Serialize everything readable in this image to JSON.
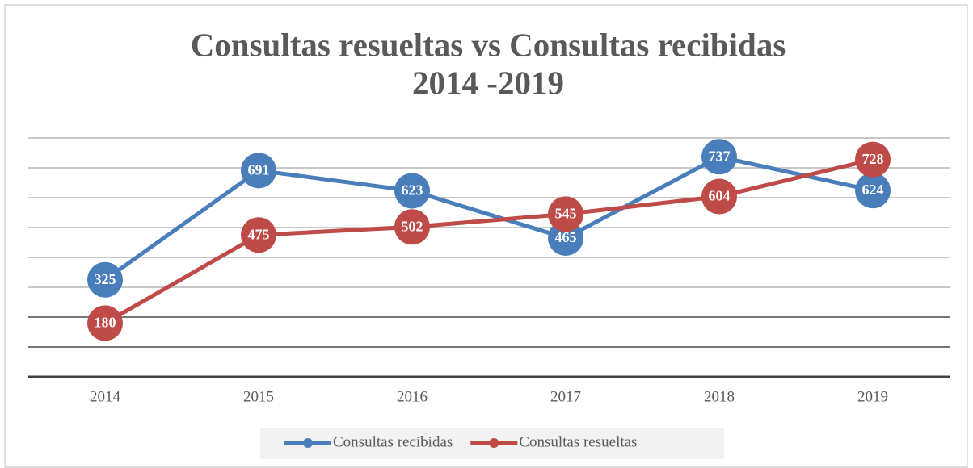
{
  "chart_data": {
    "type": "line",
    "title": [
      "Consultas resueltas vs Consultas recibidas",
      "2014 -2019"
    ],
    "categories": [
      "2014",
      "2015",
      "2016",
      "2017",
      "2018",
      "2019"
    ],
    "series": [
      {
        "name": "Consultas recibidas",
        "color": "#4a7ebb",
        "values": [
          325,
          691,
          623,
          465,
          737,
          624
        ]
      },
      {
        "name": "Consultas resueltas",
        "color": "#be4b48",
        "values": [
          180,
          475,
          502,
          545,
          604,
          728
        ]
      }
    ],
    "ylim": [
      0,
      800
    ],
    "yticks": [
      0,
      100,
      200,
      300,
      400,
      500,
      600,
      700,
      800
    ],
    "grid": true,
    "legend": "bottom"
  }
}
